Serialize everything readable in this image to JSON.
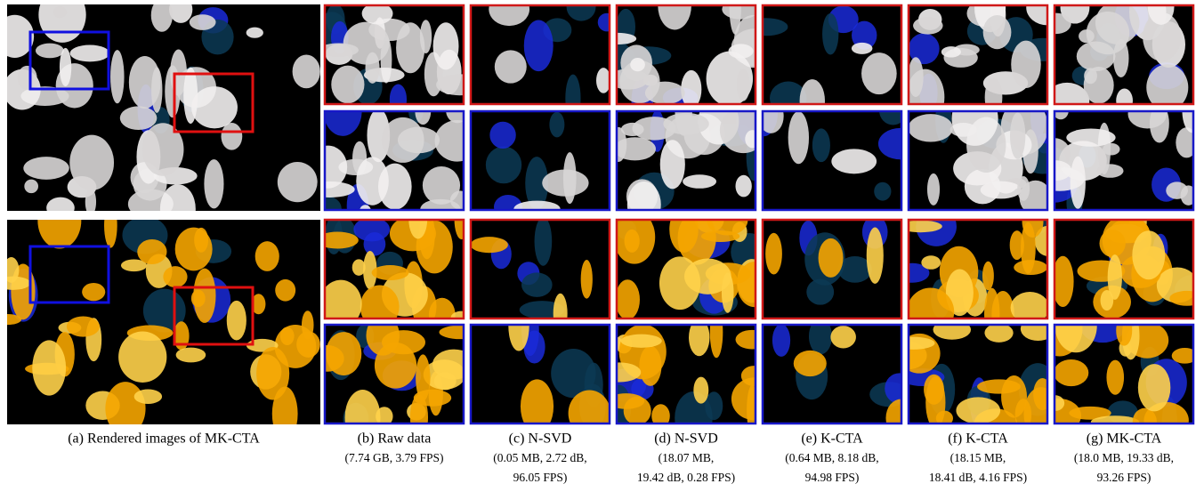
{
  "figure": {
    "overview_caption": "(a) Rendered images of MK-CTA",
    "columns": [
      {
        "label": "(b) Raw data",
        "lines": [
          "(7.74 GB, 3.79 FPS)"
        ]
      },
      {
        "label": "(c) N-SVD",
        "lines": [
          "(0.05 MB, 2.72 dB,",
          "96.05 FPS)"
        ]
      },
      {
        "label": "(d) N-SVD",
        "lines": [
          "(18.07 MB,",
          "19.42 dB, 0.28 FPS)"
        ]
      },
      {
        "label": "(e) K-CTA",
        "lines": [
          "(0.64 MB, 8.18 dB,",
          "94.98 FPS)"
        ]
      },
      {
        "label": "(f) K-CTA",
        "lines": [
          "(18.15 MB,",
          "18.41 dB, 4.16 FPS)"
        ]
      },
      {
        "label": "(g) MK-CTA",
        "lines": [
          "(18.0 MB, 19.33 dB,",
          "93.26 FPS)"
        ]
      }
    ]
  }
}
